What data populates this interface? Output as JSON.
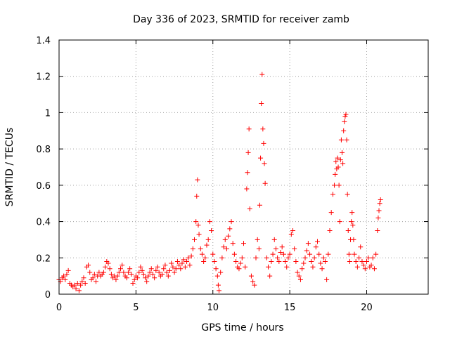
{
  "chart_data": {
    "type": "scatter",
    "title": "Day 336 of 2023, SRMTID for receiver zamb",
    "xlabel": "GPS time / hours",
    "ylabel": "SRMTID / TECUs",
    "xlim": [
      0,
      24
    ],
    "ylim": [
      0,
      1.4
    ],
    "xticks": [
      0,
      5,
      10,
      15,
      20
    ],
    "xtick_labels": [
      "0",
      "5",
      "10",
      "15",
      "20"
    ],
    "yticks": [
      0,
      0.2,
      0.4,
      0.6,
      0.8,
      1.0,
      1.2,
      1.4
    ],
    "ytick_labels": [
      "0",
      "0.2",
      "0.4",
      "0.6",
      "0.8",
      "1",
      "1.2",
      "1.4"
    ],
    "grid": true,
    "marker": "plus",
    "color": "#ff0000",
    "series": [
      {
        "name": "SRMTID",
        "points": [
          [
            0.0,
            0.08
          ],
          [
            0.1,
            0.07
          ],
          [
            0.2,
            0.09
          ],
          [
            0.3,
            0.1
          ],
          [
            0.4,
            0.08
          ],
          [
            0.5,
            0.11
          ],
          [
            0.6,
            0.13
          ],
          [
            0.7,
            0.06
          ],
          [
            0.8,
            0.05
          ],
          [
            0.9,
            0.04
          ],
          [
            1.0,
            0.05
          ],
          [
            1.1,
            0.03
          ],
          [
            1.2,
            0.06
          ],
          [
            1.3,
            0.02
          ],
          [
            1.4,
            0.05
          ],
          [
            1.5,
            0.07
          ],
          [
            1.6,
            0.09
          ],
          [
            1.7,
            0.06
          ],
          [
            1.8,
            0.15
          ],
          [
            1.9,
            0.16
          ],
          [
            2.0,
            0.12
          ],
          [
            2.1,
            0.08
          ],
          [
            2.2,
            0.09
          ],
          [
            2.3,
            0.11
          ],
          [
            2.4,
            0.07
          ],
          [
            2.5,
            0.1
          ],
          [
            2.6,
            0.12
          ],
          [
            2.7,
            0.1
          ],
          [
            2.8,
            0.11
          ],
          [
            2.9,
            0.12
          ],
          [
            3.0,
            0.15
          ],
          [
            3.1,
            0.18
          ],
          [
            3.2,
            0.17
          ],
          [
            3.3,
            0.14
          ],
          [
            3.4,
            0.11
          ],
          [
            3.5,
            0.09
          ],
          [
            3.6,
            0.1
          ],
          [
            3.7,
            0.08
          ],
          [
            3.8,
            0.1
          ],
          [
            3.9,
            0.12
          ],
          [
            4.0,
            0.14
          ],
          [
            4.1,
            0.16
          ],
          [
            4.2,
            0.12
          ],
          [
            4.3,
            0.1
          ],
          [
            4.4,
            0.09
          ],
          [
            4.5,
            0.12
          ],
          [
            4.6,
            0.14
          ],
          [
            4.7,
            0.11
          ],
          [
            4.8,
            0.06
          ],
          [
            4.9,
            0.08
          ],
          [
            5.0,
            0.1
          ],
          [
            5.1,
            0.09
          ],
          [
            5.2,
            0.12
          ],
          [
            5.3,
            0.15
          ],
          [
            5.4,
            0.13
          ],
          [
            5.5,
            0.11
          ],
          [
            5.6,
            0.09
          ],
          [
            5.7,
            0.07
          ],
          [
            5.8,
            0.1
          ],
          [
            5.9,
            0.12
          ],
          [
            6.0,
            0.14
          ],
          [
            6.1,
            0.11
          ],
          [
            6.2,
            0.09
          ],
          [
            6.3,
            0.13
          ],
          [
            6.4,
            0.15
          ],
          [
            6.5,
            0.12
          ],
          [
            6.6,
            0.1
          ],
          [
            6.7,
            0.11
          ],
          [
            6.8,
            0.14
          ],
          [
            6.9,
            0.16
          ],
          [
            7.0,
            0.12
          ],
          [
            7.1,
            0.1
          ],
          [
            7.2,
            0.13
          ],
          [
            7.3,
            0.17
          ],
          [
            7.4,
            0.15
          ],
          [
            7.5,
            0.12
          ],
          [
            7.6,
            0.14
          ],
          [
            7.7,
            0.18
          ],
          [
            7.8,
            0.16
          ],
          [
            7.9,
            0.14
          ],
          [
            8.0,
            0.17
          ],
          [
            8.1,
            0.19
          ],
          [
            8.2,
            0.15
          ],
          [
            8.3,
            0.18
          ],
          [
            8.4,
            0.2
          ],
          [
            8.5,
            0.16
          ],
          [
            8.6,
            0.21
          ],
          [
            8.7,
            0.25
          ],
          [
            8.8,
            0.3
          ],
          [
            8.9,
            0.4
          ],
          [
            8.95,
            0.54
          ],
          [
            9.0,
            0.63
          ],
          [
            9.05,
            0.38
          ],
          [
            9.1,
            0.33
          ],
          [
            9.2,
            0.25
          ],
          [
            9.3,
            0.22
          ],
          [
            9.4,
            0.18
          ],
          [
            9.5,
            0.2
          ],
          [
            9.6,
            0.27
          ],
          [
            9.7,
            0.3
          ],
          [
            9.8,
            0.4
          ],
          [
            9.9,
            0.35
          ],
          [
            10.0,
            0.22
          ],
          [
            10.1,
            0.18
          ],
          [
            10.2,
            0.14
          ],
          [
            10.3,
            0.1
          ],
          [
            10.35,
            0.05
          ],
          [
            10.4,
            0.02
          ],
          [
            10.5,
            0.12
          ],
          [
            10.6,
            0.2
          ],
          [
            10.7,
            0.26
          ],
          [
            10.8,
            0.3
          ],
          [
            10.9,
            0.25
          ],
          [
            11.0,
            0.32
          ],
          [
            11.1,
            0.36
          ],
          [
            11.2,
            0.4
          ],
          [
            11.3,
            0.28
          ],
          [
            11.4,
            0.22
          ],
          [
            11.5,
            0.18
          ],
          [
            11.6,
            0.15
          ],
          [
            11.7,
            0.14
          ],
          [
            11.8,
            0.17
          ],
          [
            11.9,
            0.2
          ],
          [
            12.0,
            0.28
          ],
          [
            12.1,
            0.15
          ],
          [
            12.2,
            0.58
          ],
          [
            12.25,
            0.67
          ],
          [
            12.3,
            0.78
          ],
          [
            12.35,
            0.91
          ],
          [
            12.4,
            0.47
          ],
          [
            12.5,
            0.1
          ],
          [
            12.6,
            0.07
          ],
          [
            12.7,
            0.05
          ],
          [
            12.8,
            0.2
          ],
          [
            12.9,
            0.3
          ],
          [
            13.0,
            0.25
          ],
          [
            13.05,
            0.49
          ],
          [
            13.1,
            0.75
          ],
          [
            13.15,
            1.05
          ],
          [
            13.2,
            1.21
          ],
          [
            13.25,
            0.91
          ],
          [
            13.3,
            0.83
          ],
          [
            13.35,
            0.72
          ],
          [
            13.4,
            0.61
          ],
          [
            13.5,
            0.2
          ],
          [
            13.6,
            0.15
          ],
          [
            13.7,
            0.1
          ],
          [
            13.8,
            0.18
          ],
          [
            13.9,
            0.22
          ],
          [
            14.0,
            0.3
          ],
          [
            14.1,
            0.25
          ],
          [
            14.2,
            0.2
          ],
          [
            14.3,
            0.18
          ],
          [
            14.4,
            0.23
          ],
          [
            14.5,
            0.26
          ],
          [
            14.6,
            0.22
          ],
          [
            14.7,
            0.18
          ],
          [
            14.8,
            0.15
          ],
          [
            14.9,
            0.2
          ],
          [
            15.0,
            0.22
          ],
          [
            15.1,
            0.33
          ],
          [
            15.2,
            0.35
          ],
          [
            15.3,
            0.25
          ],
          [
            15.4,
            0.18
          ],
          [
            15.5,
            0.12
          ],
          [
            15.6,
            0.1
          ],
          [
            15.7,
            0.08
          ],
          [
            15.8,
            0.14
          ],
          [
            15.9,
            0.17
          ],
          [
            16.0,
            0.2
          ],
          [
            16.1,
            0.24
          ],
          [
            16.2,
            0.28
          ],
          [
            16.3,
            0.22
          ],
          [
            16.4,
            0.18
          ],
          [
            16.5,
            0.15
          ],
          [
            16.6,
            0.2
          ],
          [
            16.7,
            0.26
          ],
          [
            16.8,
            0.29
          ],
          [
            16.9,
            0.22
          ],
          [
            17.0,
            0.17
          ],
          [
            17.1,
            0.14
          ],
          [
            17.2,
            0.2
          ],
          [
            17.3,
            0.18
          ],
          [
            17.4,
            0.08
          ],
          [
            17.5,
            0.22
          ],
          [
            17.6,
            0.35
          ],
          [
            17.7,
            0.45
          ],
          [
            17.8,
            0.55
          ],
          [
            17.9,
            0.6
          ],
          [
            17.95,
            0.66
          ],
          [
            18.0,
            0.73
          ],
          [
            18.05,
            0.69
          ],
          [
            18.1,
            0.75
          ],
          [
            18.15,
            0.7
          ],
          [
            18.2,
            0.6
          ],
          [
            18.25,
            0.4
          ],
          [
            18.3,
            0.74
          ],
          [
            18.35,
            0.85
          ],
          [
            18.4,
            0.78
          ],
          [
            18.45,
            0.72
          ],
          [
            18.5,
            0.9
          ],
          [
            18.55,
            0.95
          ],
          [
            18.6,
            0.98
          ],
          [
            18.65,
            0.99
          ],
          [
            18.7,
            0.85
          ],
          [
            18.75,
            0.55
          ],
          [
            18.8,
            0.35
          ],
          [
            18.85,
            0.22
          ],
          [
            18.9,
            0.18
          ],
          [
            18.95,
            0.3
          ],
          [
            19.0,
            0.4
          ],
          [
            19.05,
            0.45
          ],
          [
            19.1,
            0.38
          ],
          [
            19.15,
            0.3
          ],
          [
            19.2,
            0.22
          ],
          [
            19.3,
            0.18
          ],
          [
            19.4,
            0.15
          ],
          [
            19.5,
            0.2
          ],
          [
            19.6,
            0.26
          ],
          [
            19.7,
            0.18
          ],
          [
            19.8,
            0.16
          ],
          [
            19.9,
            0.14
          ],
          [
            20.0,
            0.18
          ],
          [
            20.1,
            0.2
          ],
          [
            20.2,
            0.15
          ],
          [
            20.3,
            0.16
          ],
          [
            20.4,
            0.2
          ],
          [
            20.5,
            0.14
          ],
          [
            20.6,
            0.22
          ],
          [
            20.7,
            0.35
          ],
          [
            20.75,
            0.42
          ],
          [
            20.8,
            0.46
          ],
          [
            20.85,
            0.5
          ],
          [
            20.9,
            0.52
          ]
        ]
      }
    ]
  }
}
